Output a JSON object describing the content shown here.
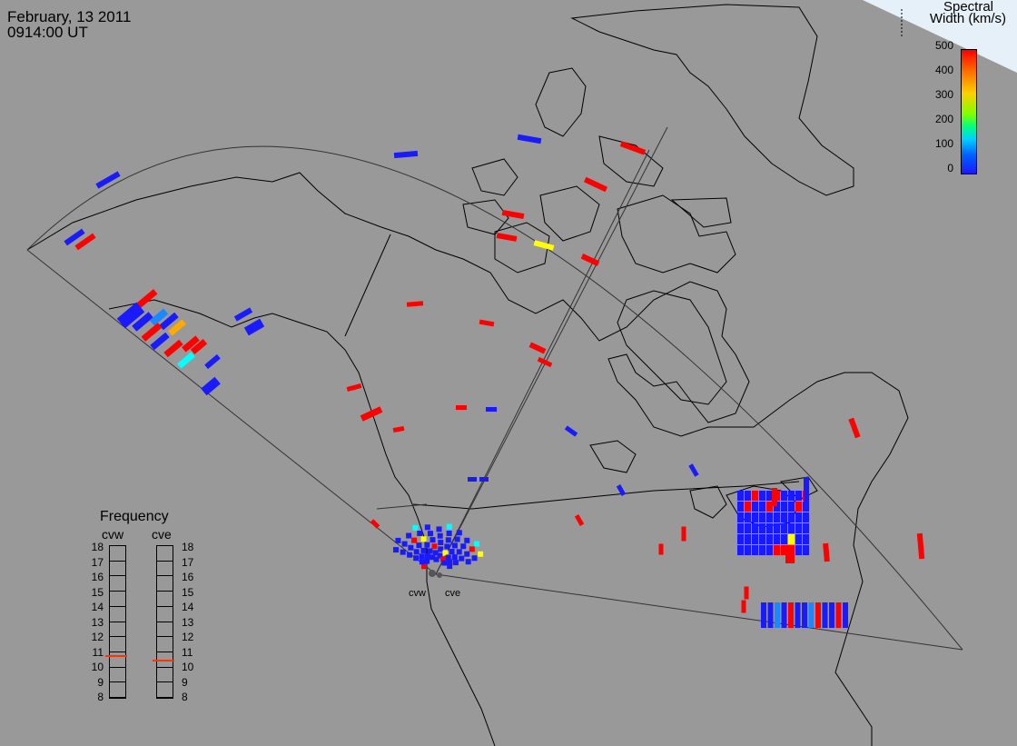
{
  "header": {
    "date": "February, 13 2011",
    "time": "0914:00 UT"
  },
  "colorbar": {
    "title_line1": "Spectral",
    "title_line2": "Width (km/s)",
    "ticks": [
      "500",
      "400",
      "300",
      "200",
      "100",
      "0"
    ],
    "scale_colors": [
      "#ff0000",
      "#ff8000",
      "#ffff00",
      "#00ff00",
      "#00ffff",
      "#0000ff"
    ]
  },
  "frequency": {
    "title": "Frequency",
    "radar_left": "cvw",
    "radar_right": "cve",
    "ticks": [
      "18",
      "17",
      "16",
      "15",
      "14",
      "13",
      "12",
      "11",
      "10",
      "9",
      "8"
    ],
    "indicator_color": "#ff3300"
  },
  "map": {
    "radar_labels": [
      "cvw",
      "cve"
    ],
    "colors": {
      "background": "#999999",
      "low_width": "#1a1aff",
      "high_width": "#ff0000",
      "mid_yellow": "#ffff00",
      "cyan": "#00ffff",
      "orange": "#ffaa00",
      "sky": "#1a88ff"
    }
  }
}
